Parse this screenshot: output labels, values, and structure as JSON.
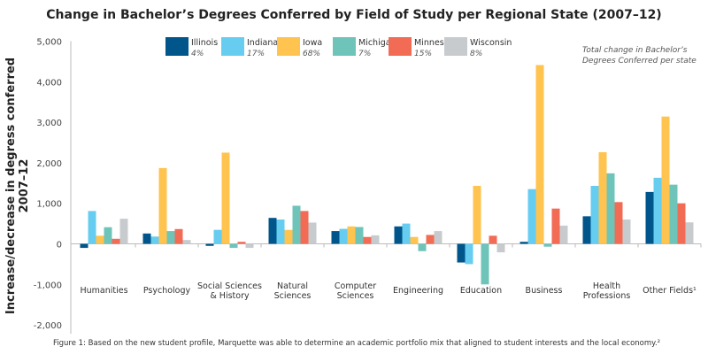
{
  "chart_data": {
    "type": "bar",
    "title": "Change in Bachelor’s Degrees Conferred by Field of Study per Regional State (2007–12)",
    "ylabel": "Increase/decrease in degress conferred 2007–12",
    "xlabel": "",
    "ylim": [
      -2000,
      5000
    ],
    "yticks": [
      "5,000",
      "4,000",
      "3,000",
      "2,000",
      "1,000",
      "0",
      "-1,000",
      "-2,000"
    ],
    "ytick_values": [
      5000,
      4000,
      3000,
      2000,
      1000,
      0,
      -1000,
      -2000
    ],
    "grid": false,
    "legend_position": "top",
    "legend_note": [
      "Total change in Bachelor’s",
      "Degrees Conferred per state"
    ],
    "categories": [
      "Humanities",
      "Psychology",
      "Social Sciences & History",
      "Natural Sciences",
      "Computer Sciences",
      "Engineering",
      "Education",
      "Business",
      "Health Professions",
      "Other Fields¹"
    ],
    "category_lines": [
      [
        "Humanities"
      ],
      [
        "Psychology"
      ],
      [
        "Social Sciences",
        "& History"
      ],
      [
        "Natural",
        "Sciences"
      ],
      [
        "Computer",
        "Sciences"
      ],
      [
        "Engineering"
      ],
      [
        "Education"
      ],
      [
        "Business"
      ],
      [
        "Health",
        "Professions"
      ],
      [
        "Other Fields¹"
      ]
    ],
    "series": [
      {
        "name": "Illinois",
        "total": "4%",
        "color": "#00558a",
        "values": [
          -100,
          255,
          -50,
          640,
          315,
          430,
          -460,
          50,
          680,
          1280
        ]
      },
      {
        "name": "Indiana",
        "total": "17%",
        "color": "#66cdf0",
        "values": [
          810,
          180,
          345,
          600,
          370,
          500,
          -500,
          1350,
          1430,
          1630
        ]
      },
      {
        "name": "Iowa",
        "total": "68%",
        "color": "#ffc34f",
        "values": [
          200,
          1870,
          2250,
          345,
          430,
          170,
          1430,
          4410,
          2260,
          3140
        ]
      },
      {
        "name": "Michigan",
        "total": "7%",
        "color": "#6ec4b9",
        "values": [
          410,
          315,
          -100,
          940,
          415,
          -180,
          -1000,
          -70,
          1740,
          1460
        ]
      },
      {
        "name": "Minnesota",
        "total": "15%",
        "color": "#f26b55",
        "values": [
          125,
          365,
          50,
          810,
          170,
          220,
          200,
          870,
          1030,
          1000
        ]
      },
      {
        "name": "Wisconsin",
        "total": "8%",
        "color": "#c8cbce",
        "values": [
          620,
          95,
          -100,
          525,
          210,
          315,
          -210,
          450,
          600,
          530
        ]
      }
    ],
    "caption": "Figure 1: Based on the new student profile, Marquette was able to determine an academic portfolio mix that aligned to student interests and the local economy.²"
  }
}
